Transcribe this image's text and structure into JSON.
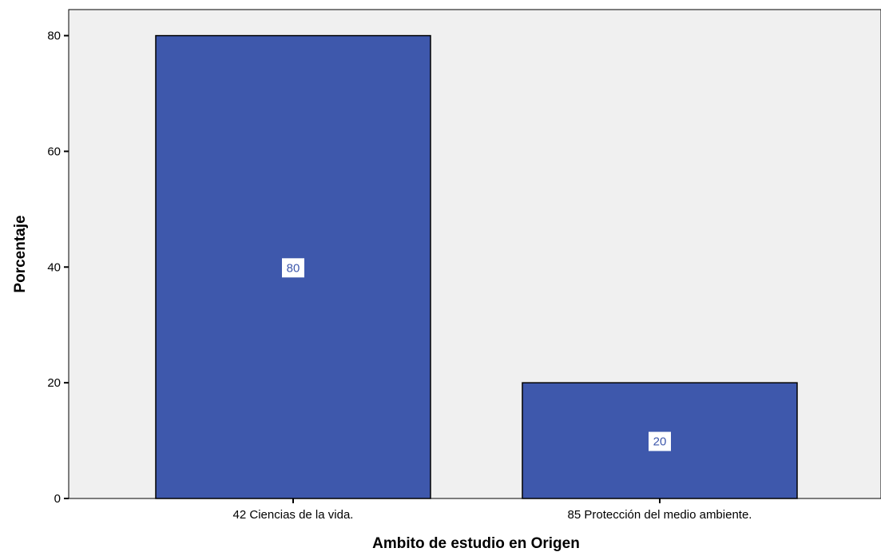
{
  "chart_data": {
    "type": "bar",
    "categories": [
      "42 Ciencias de la vida.",
      "85 Protección del medio ambiente."
    ],
    "values": [
      80,
      20
    ],
    "data_labels": [
      "80",
      "20"
    ],
    "title": "",
    "xlabel": "Ambito de estudio en Origen",
    "ylabel": "Porcentaje",
    "ylim": [
      0,
      84.5
    ],
    "yticks": [
      0,
      20,
      40,
      60,
      80
    ],
    "ytick_labels": [
      "0",
      "20",
      "40",
      "60",
      "80"
    ],
    "grid": false,
    "legend": "none",
    "colors": {
      "bar": "#3e58ac",
      "plot_background": "#f0f0f0",
      "data_label_background": "#ffffff",
      "data_label_text": "#3e58ac"
    }
  }
}
